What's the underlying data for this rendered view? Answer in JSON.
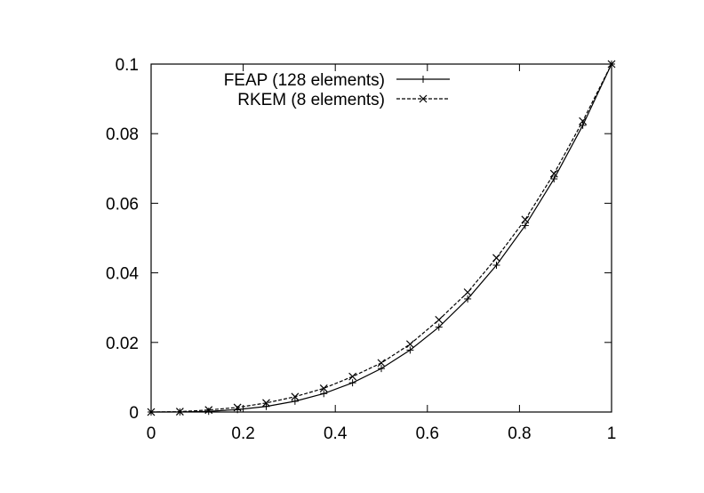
{
  "chart_data": {
    "type": "line",
    "title": "",
    "xlabel": "",
    "ylabel": "",
    "xlim": [
      0,
      1
    ],
    "ylim": [
      0,
      0.1
    ],
    "x_ticks": [
      0,
      0.2,
      0.4,
      0.6,
      0.8,
      1
    ],
    "x_tick_labels": [
      "0",
      "0.2",
      "0.4",
      "0.6",
      "0.8",
      "1"
    ],
    "y_ticks": [
      0,
      0.02,
      0.04,
      0.06,
      0.08,
      0.1
    ],
    "y_tick_labels": [
      "0",
      "0.02",
      "0.04",
      "0.06",
      "0.08",
      "0.1"
    ],
    "grid": false,
    "legend_position": "top-left",
    "series": [
      {
        "name": "FEAP (128 elements)",
        "marker": "plus",
        "line_style": "solid",
        "x": [
          0,
          0.0625,
          0.125,
          0.1875,
          0.25,
          0.3125,
          0.375,
          0.4375,
          0.5,
          0.5625,
          0.625,
          0.6875,
          0.75,
          0.8125,
          0.875,
          0.9375,
          1.0
        ],
        "y": [
          0,
          2e-05,
          0.0002,
          0.0007,
          0.0016,
          0.0031,
          0.0053,
          0.0084,
          0.0125,
          0.0178,
          0.0244,
          0.0325,
          0.0422,
          0.0536,
          0.067,
          0.0824,
          0.1
        ]
      },
      {
        "name": "RKEM (8 elements)",
        "marker": "cross",
        "line_style": "dashed",
        "x": [
          0,
          0.0625,
          0.125,
          0.1875,
          0.25,
          0.3125,
          0.375,
          0.4375,
          0.5,
          0.5625,
          0.625,
          0.6875,
          0.75,
          0.8125,
          0.875,
          0.9375,
          1.0
        ],
        "y": [
          0,
          0.0001,
          0.0006,
          0.0013,
          0.0026,
          0.0044,
          0.0068,
          0.0102,
          0.0141,
          0.0195,
          0.0265,
          0.0344,
          0.0443,
          0.0553,
          0.0685,
          0.0836,
          0.1
        ]
      }
    ]
  }
}
